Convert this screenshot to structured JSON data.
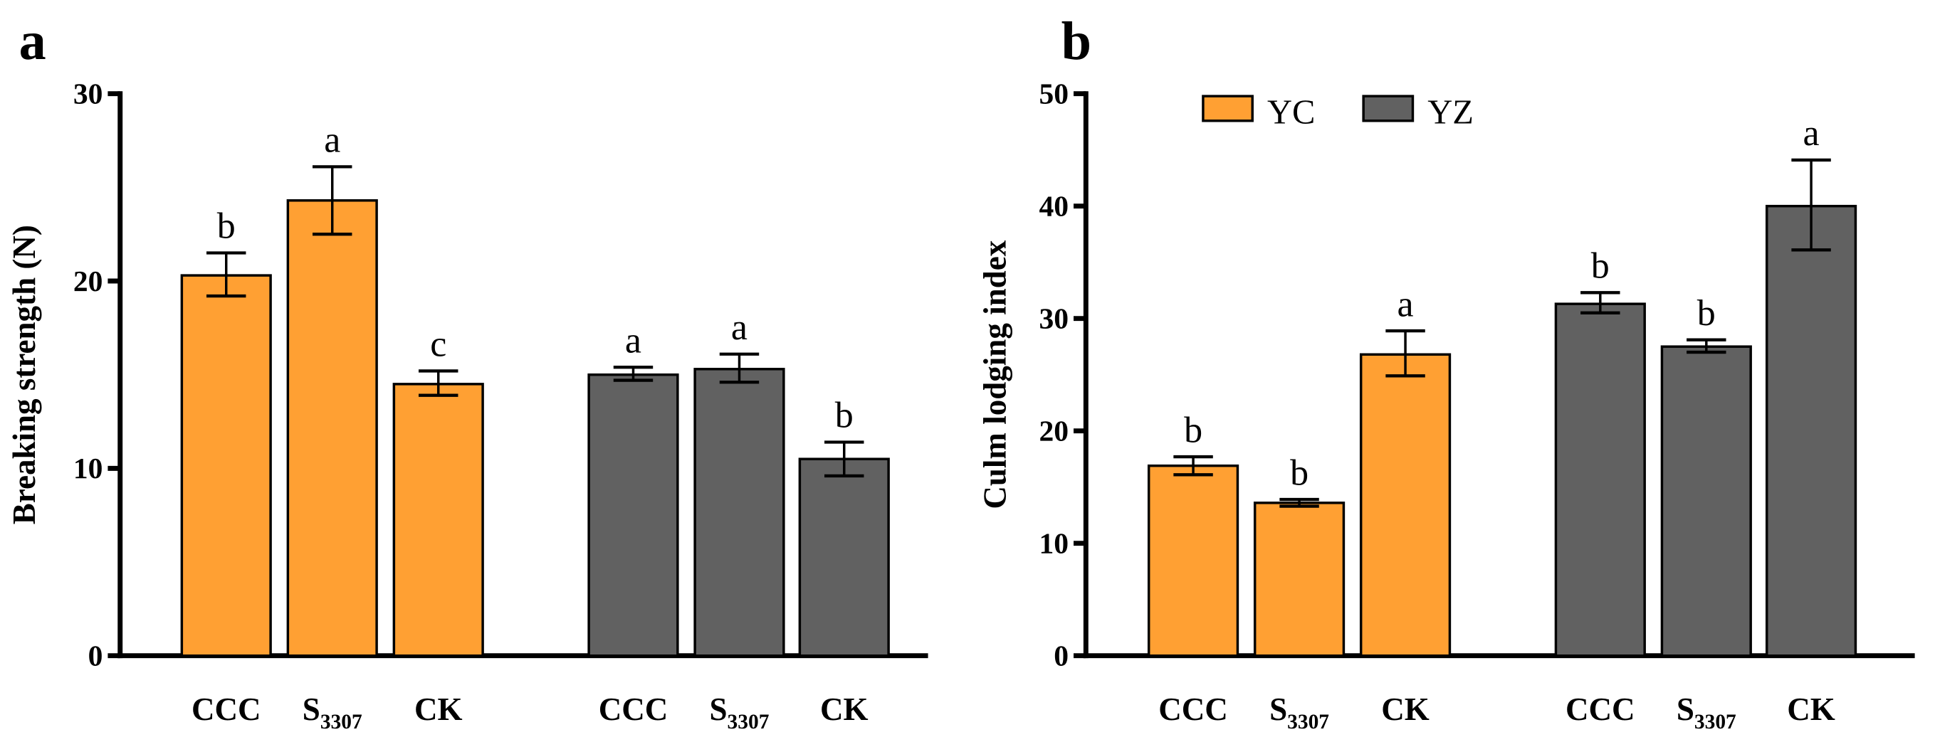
{
  "chart_data": [
    {
      "type": "bar",
      "panel_label": "a",
      "ylabel": "Breaking strength (N)",
      "ylim": [
        0,
        30
      ],
      "yticks": [
        0,
        10,
        20,
        30
      ],
      "categories": [
        "CCC",
        "S3307",
        "CK"
      ],
      "grid": false,
      "series": [
        {
          "color": "#FFA033",
          "values": [
            20.3,
            24.3,
            14.5
          ],
          "err_low": [
            19.2,
            22.5,
            13.9
          ],
          "err_high": [
            21.5,
            26.1,
            15.2
          ],
          "letters": [
            "b",
            "a",
            "c"
          ]
        },
        {
          "color": "#616161",
          "values": [
            15.0,
            15.3,
            10.5
          ],
          "err_low": [
            14.7,
            14.6,
            9.6
          ],
          "err_high": [
            15.4,
            16.1,
            11.4
          ],
          "letters": [
            "a",
            "a",
            "b"
          ]
        }
      ]
    },
    {
      "type": "bar",
      "panel_label": "b",
      "ylabel": "Culm lodging index",
      "ylim": [
        0,
        50
      ],
      "yticks": [
        0,
        10,
        20,
        30,
        40,
        50
      ],
      "categories": [
        "CCC",
        "S3307",
        "CK"
      ],
      "grid": false,
      "legend_position": "top-left",
      "series": [
        {
          "name": "YC",
          "color": "#FFA033",
          "values": [
            16.9,
            13.6,
            26.8
          ],
          "err_low": [
            16.1,
            13.3,
            24.9
          ],
          "err_high": [
            17.7,
            13.9,
            28.9
          ],
          "letters": [
            "b",
            "b",
            "a"
          ]
        },
        {
          "name": "YZ",
          "color": "#616161",
          "values": [
            31.3,
            27.5,
            40.0
          ],
          "err_low": [
            30.5,
            27.0,
            36.1
          ],
          "err_high": [
            32.3,
            28.1,
            44.1
          ],
          "letters": [
            "b",
            "b",
            "a"
          ]
        }
      ]
    }
  ]
}
